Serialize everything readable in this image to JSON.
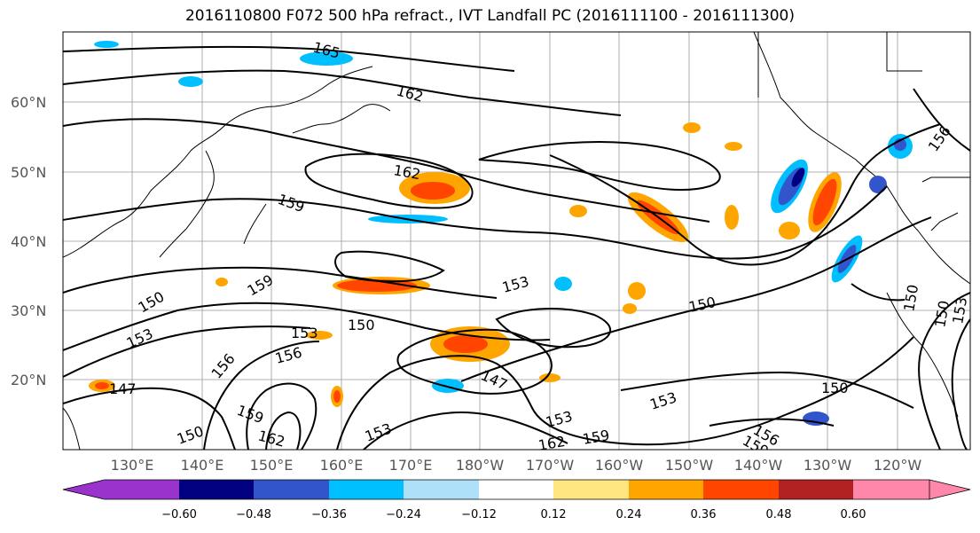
{
  "title": "2016110800 F072 500 hPa refract., IVT Landfall PC (2016111100 - 2016111300)",
  "lat_labels": [
    "60°N",
    "50°N",
    "40°N",
    "30°N",
    "20°N"
  ],
  "lon_labels": [
    "130°E",
    "140°E",
    "150°E",
    "160°E",
    "170°E",
    "180°W",
    "170°W",
    "160°W",
    "150°W",
    "140°W",
    "130°W",
    "120°W"
  ],
  "contour_labels": [
    "165",
    "162",
    "162",
    "159",
    "159",
    "150",
    "153",
    "153",
    "150",
    "153",
    "150",
    "147",
    "156",
    "156",
    "159",
    "162",
    "150",
    "153",
    "147",
    "153",
    "153",
    "159",
    "162",
    "150",
    "156",
    "159",
    "150",
    "150",
    "153",
    "156"
  ],
  "colorbar": {
    "colors": [
      "#9933cc",
      "#000080",
      "#3355cc",
      "#00bfff",
      "#aee0fa",
      "#ffffff",
      "#ffe680",
      "#ffa500",
      "#ff4500",
      "#b22222",
      "#ff88aa"
    ],
    "ticks": [
      "−0.60",
      "−0.48",
      "−0.36",
      "−0.24",
      "−0.12",
      "0.12",
      "0.24",
      "0.36",
      "0.48",
      "0.60"
    ]
  }
}
